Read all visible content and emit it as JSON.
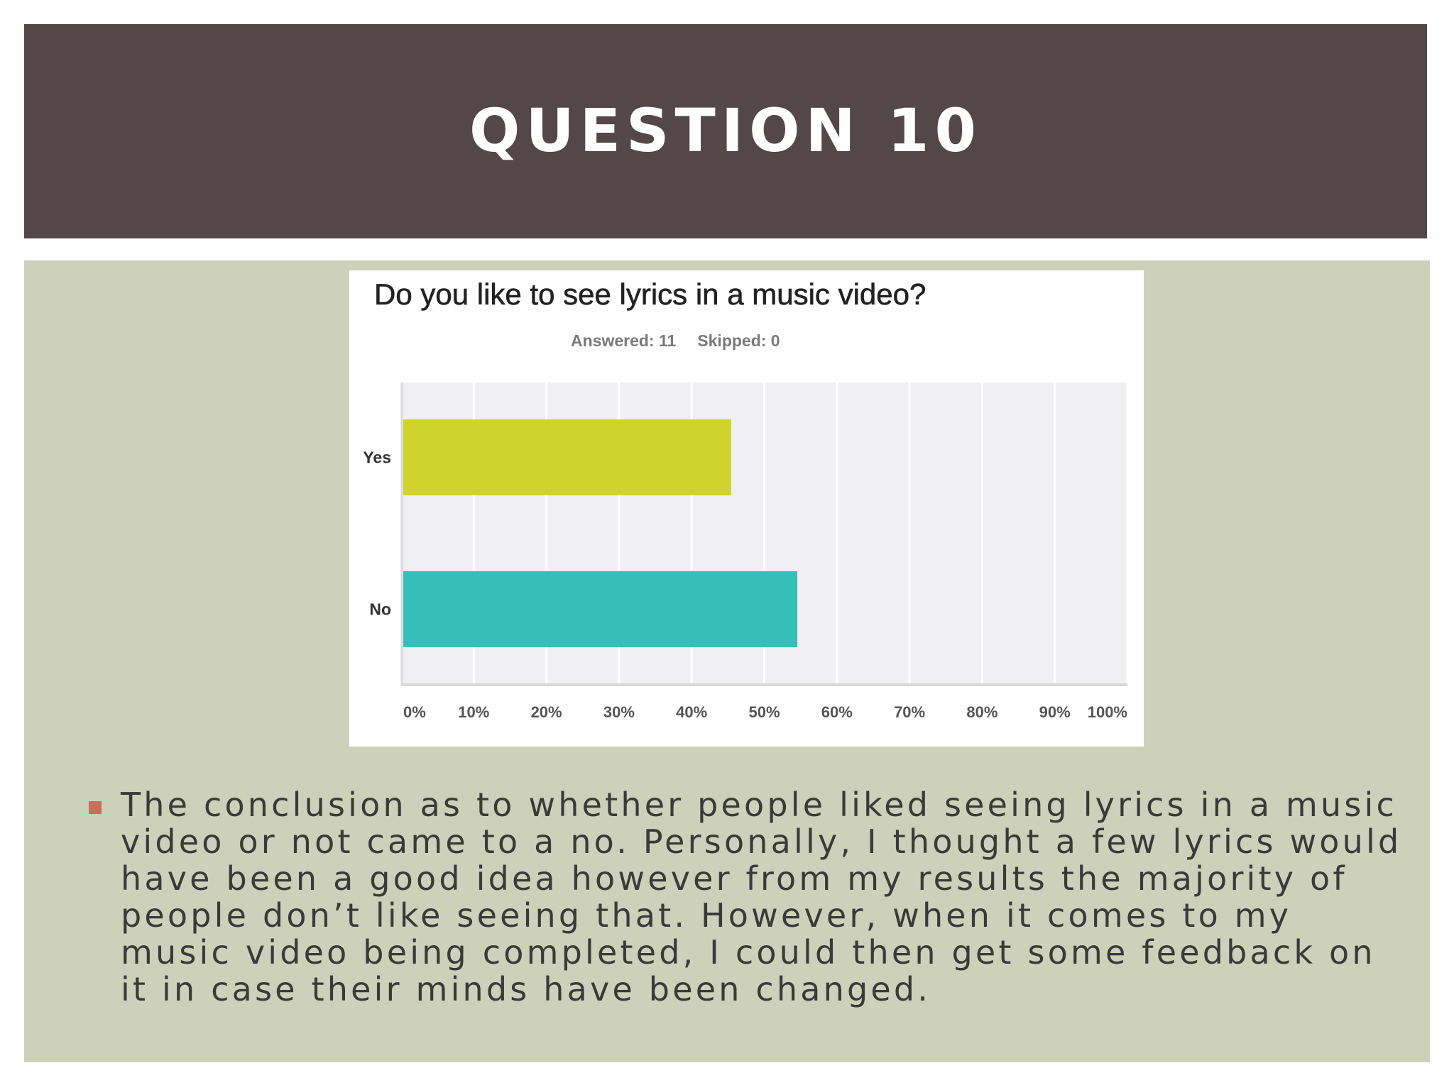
{
  "slide": {
    "title": "QUESTION 10",
    "bullet_text": "The conclusion as to whether people liked seeing lyrics in a music video or not came to a no. Personally, I thought a few lyrics would have been a good idea however from my results the majority of people don’t like seeing that. However, when it comes to my music video being completed, I could then get some feedback on it in case their minds have been changed."
  },
  "survey": {
    "answered": "Answered: 11",
    "skipped": "Skipped: 0"
  },
  "chart_data": {
    "type": "bar",
    "orientation": "horizontal",
    "title": "Do you like to see lyrics in a music video?",
    "categories": [
      "Yes",
      "No"
    ],
    "values": [
      45.45,
      54.55
    ],
    "value_unit": "%",
    "xlim": [
      0,
      100
    ],
    "x_ticks": [
      "0%",
      "10%",
      "20%",
      "30%",
      "40%",
      "50%",
      "60%",
      "70%",
      "80%",
      "90%",
      "100%"
    ],
    "grid": true,
    "legend": "none",
    "colors": [
      "#cfd32b",
      "#35bfb9"
    ],
    "plot_background": "#f0eff1",
    "gridline_color": "#ffffff"
  }
}
